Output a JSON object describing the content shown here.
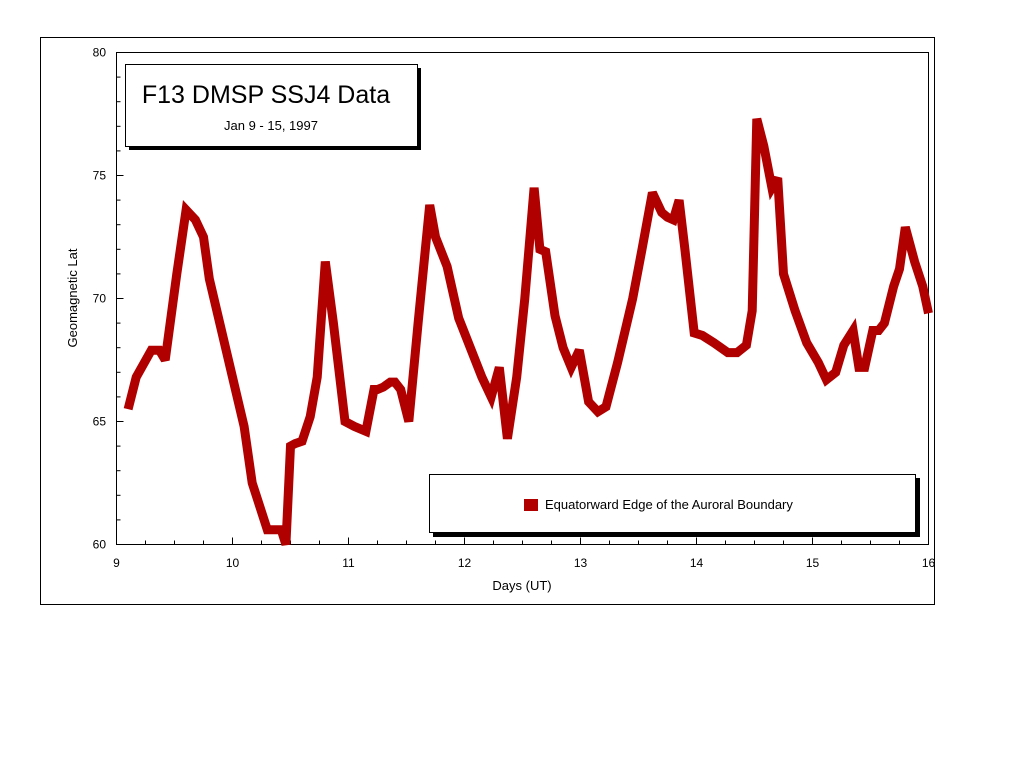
{
  "chart_data": {
    "type": "line",
    "title": "F13 DMSP SSJ4 Data",
    "subtitle": "Jan 9 - 15, 1997",
    "xlabel": "Days (UT)",
    "ylabel": "Geomagnetic Lat",
    "xlim": [
      9,
      16
    ],
    "ylim": [
      60,
      80
    ],
    "xticks": [
      "9",
      "10",
      "11",
      "12",
      "13",
      "14",
      "15",
      "16"
    ],
    "yticks": [
      "60",
      "65",
      "70",
      "75",
      "80"
    ],
    "grid": false,
    "legend_position": "bottom-right",
    "line_color": "#b00000",
    "series": [
      {
        "name": "Equatorward Edge of  the Auroral Boundary",
        "x": [
          9.1,
          9.17,
          9.3,
          9.37,
          9.42,
          9.52,
          9.6,
          9.68,
          9.75,
          9.8,
          9.9,
          10.0,
          10.1,
          10.17,
          10.3,
          10.35,
          10.42,
          10.46,
          10.5,
          10.54,
          10.6,
          10.67,
          10.73,
          10.8,
          10.87,
          10.97,
          11.05,
          11.15,
          11.22,
          11.25,
          11.3,
          11.36,
          11.4,
          11.45,
          11.52,
          11.6,
          11.7,
          11.75,
          11.85,
          11.95,
          12.05,
          12.15,
          12.23,
          12.3,
          12.37,
          12.45,
          12.52,
          12.6,
          12.65,
          12.7,
          12.78,
          12.85,
          12.92,
          12.99,
          13.07,
          13.15,
          13.22,
          13.32,
          13.45,
          13.53,
          13.62,
          13.7,
          13.75,
          13.8,
          13.85,
          13.9,
          13.98,
          14.05,
          14.15,
          14.27,
          14.35,
          14.43,
          14.48,
          14.52,
          14.58,
          14.65,
          14.7,
          14.75,
          14.85,
          14.95,
          15.05,
          15.12,
          15.2,
          15.27,
          15.35,
          15.4,
          15.45,
          15.52,
          15.57,
          15.62,
          15.7,
          15.75,
          15.8,
          15.88,
          15.95,
          16.0
        ],
        "values": [
          65.5,
          66.8,
          67.9,
          67.9,
          67.5,
          71,
          73.6,
          73.2,
          72.5,
          70.8,
          68.8,
          66.8,
          64.8,
          62.5,
          60.6,
          60.6,
          60.6,
          60.0,
          64.0,
          64.1,
          64.2,
          65.2,
          66.8,
          71.5,
          69,
          65,
          64.8,
          64.6,
          66.3,
          66.3,
          66.4,
          66.6,
          66.6,
          66.3,
          65.0,
          69,
          73.8,
          72.5,
          71.3,
          69.2,
          68,
          66.8,
          66.0,
          67.2,
          64.3,
          66.8,
          70,
          74.5,
          72,
          71.9,
          69.3,
          68,
          67.2,
          67.9,
          65.8,
          65.4,
          65.6,
          67.4,
          70,
          72,
          74.3,
          73.5,
          73.3,
          73.2,
          74,
          72,
          68.6,
          68.5,
          68.2,
          67.8,
          67.8,
          68.1,
          69.5,
          77.3,
          76.2,
          74.5,
          74.9,
          71,
          69.5,
          68.2,
          67.4,
          66.7,
          67,
          68.1,
          68.7,
          67.2,
          67.2,
          68.7,
          68.7,
          69,
          70.5,
          71.2,
          72.9,
          71.5,
          70.5,
          69.4
        ]
      }
    ]
  }
}
